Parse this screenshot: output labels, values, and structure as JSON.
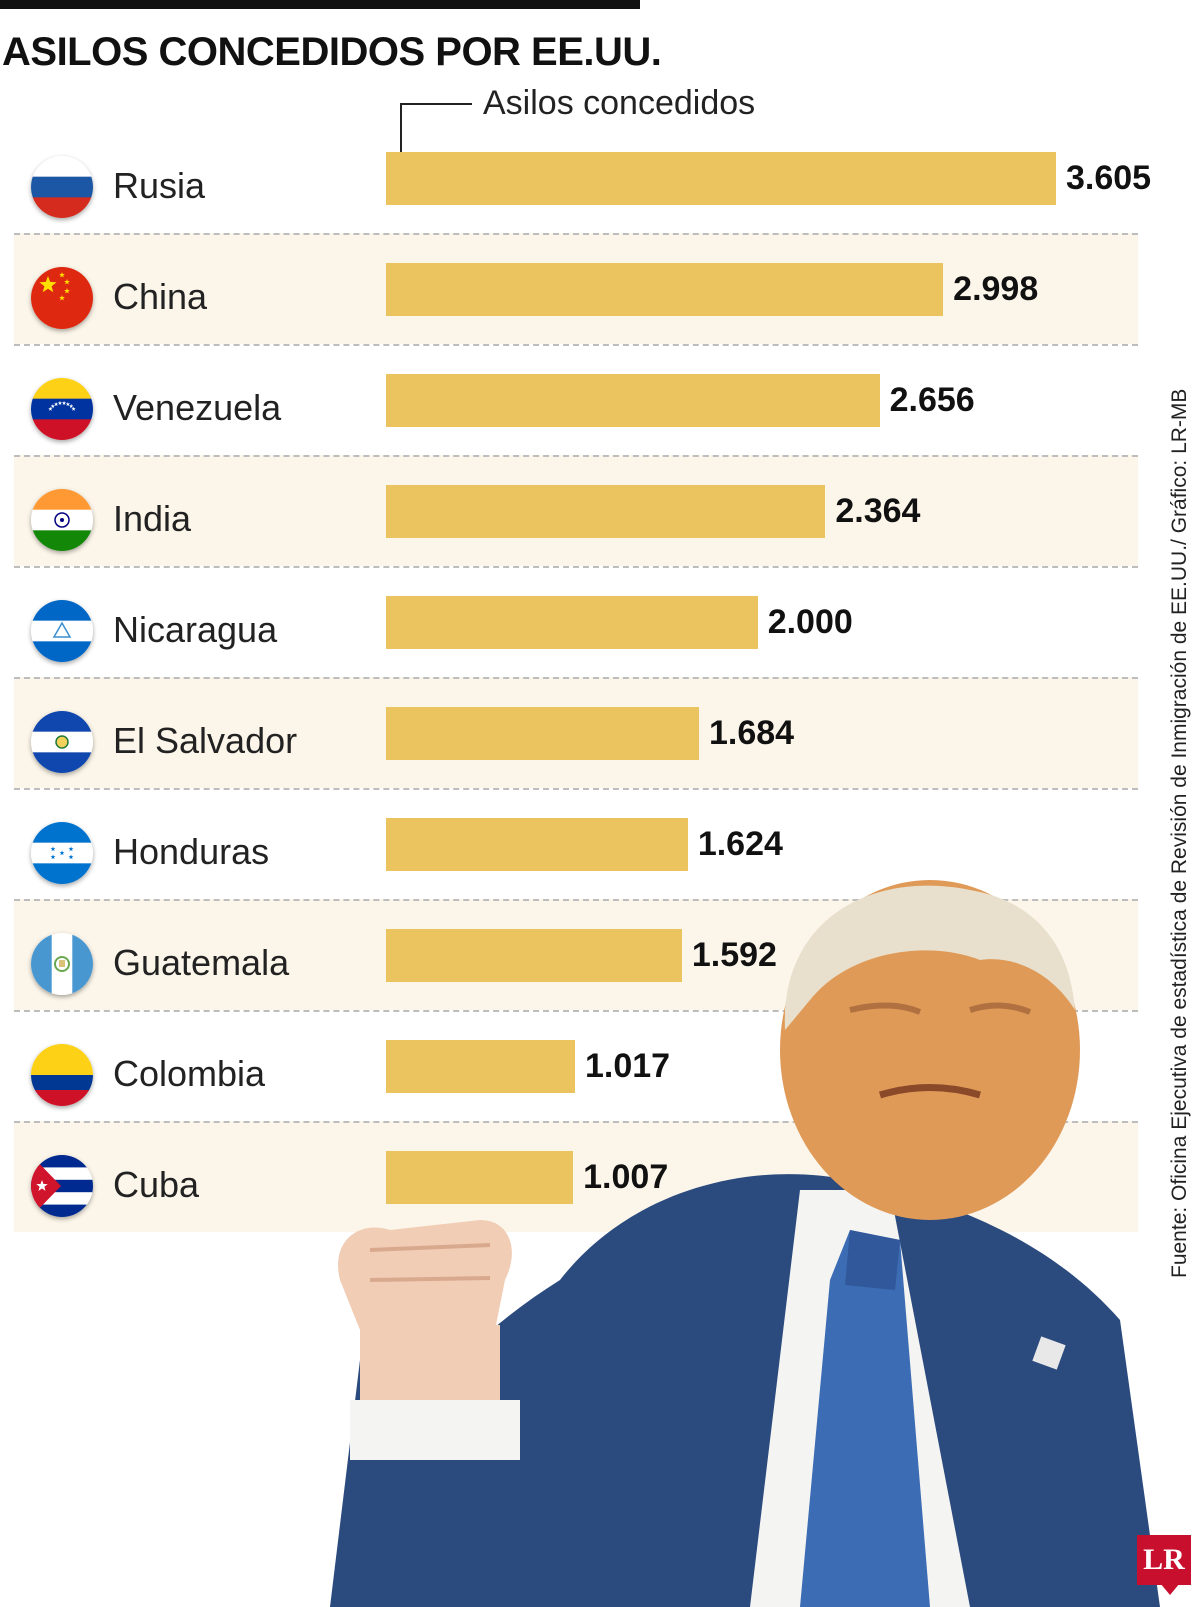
{
  "title": "ASILOS CONCEDIDOS POR EE.UU.",
  "legend_label": "Asilos concedidos",
  "source": "Fuente: Oficina Ejecutiva de estadística de Revisión de Inmigración de EE.UU./ Gráfico: LR-MB",
  "logo_text": "LR",
  "colors": {
    "bar": "#ebc45f",
    "row_shade": "#fcf6ea",
    "separator": "#bdbdbd",
    "logo": "#c8102e"
  },
  "chart_data": {
    "type": "bar",
    "orientation": "horizontal",
    "categories": [
      "Rusia",
      "China",
      "Venezuela",
      "India",
      "Nicaragua",
      "El Salvador",
      "Honduras",
      "Guatemala",
      "Colombia",
      "Cuba"
    ],
    "values": [
      3605,
      2998,
      2656,
      2364,
      2000,
      1684,
      1624,
      1592,
      1017,
      1007
    ],
    "value_labels": [
      "3.605",
      "2.998",
      "2.656",
      "2.364",
      "2.000",
      "1.684",
      "1.624",
      "1.592",
      "1.017",
      "1.007"
    ],
    "flags": [
      "russia-flag-icon",
      "china-flag-icon",
      "venezuela-flag-icon",
      "india-flag-icon",
      "nicaragua-flag-icon",
      "el-salvador-flag-icon",
      "honduras-flag-icon",
      "guatemala-flag-icon",
      "colombia-flag-icon",
      "cuba-flag-icon"
    ],
    "series": [
      {
        "name": "Asilos concedidos",
        "values": [
          3605,
          2998,
          2656,
          2364,
          2000,
          1684,
          1624,
          1592,
          1017,
          1007
        ]
      }
    ],
    "xlim": [
      0,
      3605
    ],
    "grid": false,
    "legend_placement": "top"
  }
}
